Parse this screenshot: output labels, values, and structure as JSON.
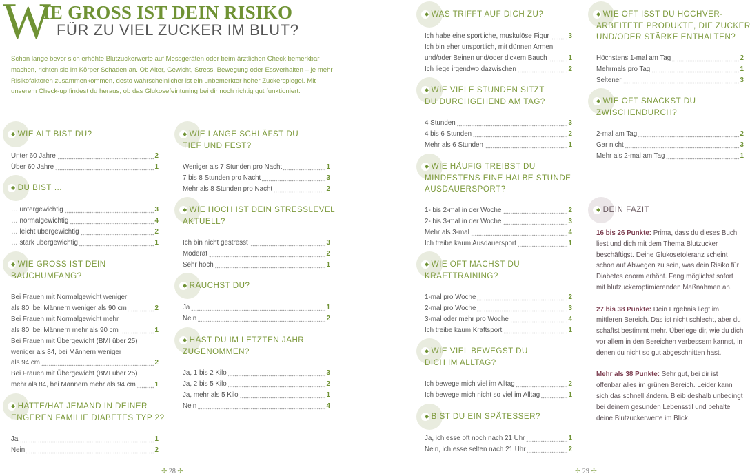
{
  "title": {
    "initial": "W",
    "line1": "IE GROSS IST DEIN RISIKO",
    "line2": "FÜR ZU VIEL ZUCKER IM BLUT?"
  },
  "intro": "Schon lange bevor sich erhöhte Blutzuckerwerte auf Messgeräten oder beim ärztlichen Check bemerkbar machen, richten sie im Körper Schaden an. Ob Alter, Gewicht, Stress, Bewegung oder Essverhalten – je mehr Risikofaktoren zusammenkommen, desto wahrscheinlicher ist ein unbemerkter hoher Zuckerspiegel. Mit unserem Check-up findest du heraus, ob das Glukosefeintuning bei dir noch richtig gut funktioniert.",
  "sections": [
    {
      "q": "WIE ALT BIST DU?",
      "options": [
        {
          "t": "Unter 60 Jahre",
          "n": "2"
        },
        {
          "t": "Über 60 Jahre",
          "n": "1"
        }
      ]
    },
    {
      "q": "DU BIST …",
      "options": [
        {
          "t": "… untergewichtig",
          "n": "3"
        },
        {
          "t": "… normalgewichtig",
          "n": "4"
        },
        {
          "t": "… leicht übergewichtig",
          "n": "2"
        },
        {
          "t": "… stark übergewichtig",
          "n": "1"
        }
      ]
    },
    {
      "q": "WIE GROSS IST DEIN\nBAUCHUMFANG?",
      "options": [
        {
          "t": "Bei Frauen mit Normalgewicht weniger\nals 80, bei Männern weniger als 90 cm",
          "n": "2"
        },
        {
          "t": "Bei Frauen mit Normalgewicht mehr\nals 80, bei Männern mehr als 90 cm",
          "n": "1"
        },
        {
          "t": "Bei Frauen mit Übergewicht (BMI über 25)\nweniger als 84, bei Männern weniger\nals 94 cm",
          "n": "2"
        },
        {
          "t": "Bei Frauen mit Übergewicht (BMI über 25)\nmehr als 84, bei Männern mehr als 94 cm",
          "n": "1"
        }
      ]
    },
    {
      "q": "HATTE/HAT JEMAND IN DEINER\nENGEREN FAMILIE DIABETES TYP 2?",
      "options": [
        {
          "t": "Ja",
          "n": "1"
        },
        {
          "t": "Nein",
          "n": "2"
        }
      ]
    },
    {
      "q": "WIE LANGE SCHLÄFST DU\nTIEF UND FEST?",
      "options": [
        {
          "t": "Weniger als 7 Stunden pro Nacht",
          "n": "1"
        },
        {
          "t": "7 bis 8 Stunden pro Nacht",
          "n": "3"
        },
        {
          "t": "Mehr als 8 Stunden pro Nacht",
          "n": "2"
        }
      ]
    },
    {
      "q": "WIE HOCH IST DEIN STRESSLEVEL\nAKTUELL?",
      "options": [
        {
          "t": "Ich bin nicht gestresst",
          "n": "3"
        },
        {
          "t": "Moderat",
          "n": "2"
        },
        {
          "t": "Sehr hoch",
          "n": "1"
        }
      ]
    },
    {
      "q": "RAUCHST DU?",
      "options": [
        {
          "t": "Ja",
          "n": "1"
        },
        {
          "t": "Nein",
          "n": "2"
        }
      ]
    },
    {
      "q": "HAST DU IM LETZTEN JAHR\nZUGENOMMEN?",
      "options": [
        {
          "t": "Ja, 1 bis 2 Kilo",
          "n": "3"
        },
        {
          "t": "Ja,  2 bis 5 Kilo",
          "n": "2"
        },
        {
          "t": "Ja,  mehr als 5 Kilo",
          "n": "1"
        },
        {
          "t": "Nein",
          "n": "4"
        }
      ]
    },
    {
      "q": "WAS TRIFFT AUF DICH ZU?",
      "options": [
        {
          "t": "Ich habe eine sportliche, muskulöse Figur",
          "n": "3"
        },
        {
          "t": "Ich bin eher unsportlich, mit dünnen Armen\nund/oder Beinen und/oder dickem Bauch",
          "n": "1"
        },
        {
          "t": "Ich liege irgendwo dazwischen",
          "n": "2"
        }
      ]
    },
    {
      "q": "WIE VIELE STUNDEN SITZT\nDU DURCHGEHEND AM TAG?",
      "options": [
        {
          "t": "4 Stunden",
          "n": "3"
        },
        {
          "t": "4 bis 6 Stunden",
          "n": "2"
        },
        {
          "t": "Mehr als 6 Stunden",
          "n": "1"
        }
      ]
    },
    {
      "q": "WIE HÄUFIG TREIBST DU\nMINDESTENS EINE HALBE STUNDE\nAUSDAUERSPORT?",
      "options": [
        {
          "t": "1- bis 2-mal in der Woche",
          "n": "2"
        },
        {
          "t": "2- bis 3-mal in der Woche",
          "n": "3"
        },
        {
          "t": "Mehr als 3-mal",
          "n": "4"
        },
        {
          "t": "Ich treibe kaum Ausdauersport",
          "n": "1"
        }
      ]
    },
    {
      "q": "WIE OFT MACHST DU\nKRAFTTRAINING?",
      "options": [
        {
          "t": "1-mal pro Woche",
          "n": "2"
        },
        {
          "t": "2-mal pro Woche",
          "n": "3"
        },
        {
          "t": "3-mal oder mehr pro Woche",
          "n": "4"
        },
        {
          "t": "Ich treibe kaum Kraftsport",
          "n": "1"
        }
      ]
    },
    {
      "q": "WIE VIEL BEWEGST DU\nDICH IM ALLTAG?",
      "options": [
        {
          "t": "Ich bewege mich viel im Alltag",
          "n": "2"
        },
        {
          "t": "Ich bewege mich nicht so viel im Alltag",
          "n": "1"
        }
      ]
    },
    {
      "q": "BIST DU EIN SPÄTESSER?",
      "options": [
        {
          "t": "Ja, ich esse oft noch nach 21 Uhr",
          "n": "1"
        },
        {
          "t": "Nein, ich esse selten nach 21 Uhr",
          "n": "2"
        }
      ]
    },
    {
      "q": "WIE OFT ISST DU HOCHVER-\nARBEITETE PRODUKTE, DIE ZUCKER\nUND/ODER STÄRKE ENTHALTEN?",
      "options": [
        {
          "t": "Höchstens 1-mal am Tag",
          "n": "2"
        },
        {
          "t": "Mehrmals pro Tag",
          "n": "1"
        },
        {
          "t": "Seltener",
          "n": "3"
        }
      ]
    },
    {
      "q": "WIE OFT SNACKST DU\nZWISCHENDURCH?",
      "options": [
        {
          "t": "2-mal am Tag",
          "n": "2"
        },
        {
          "t": "Gar nicht",
          "n": "3"
        },
        {
          "t": "Mehr als 2-mal am Tag",
          "n": "1"
        }
      ]
    }
  ],
  "fazit": {
    "q": "DEIN FAZIT",
    "results": [
      {
        "range": "16 bis 26 Punkte:",
        "text": " Prima, dass du dieses Buch liest und dich mit dem Thema Blutzucker beschäftigst. Deine Glukosetoleranz scheint schon auf Abwegen zu sein, was dein Risiko für Diabetes enorm erhöht. Fang möglichst sofort mit blutzuckeroptimierenden Maßnahmen an."
      },
      {
        "range": "27 bis 38 Punkte:",
        "text": " Dein Ergebnis liegt im mittleren Bereich. Das ist nicht schlecht, aber du schaffst bestimmt mehr. Überlege dir, wie du dich vor allem in den Bereichen verbessern kannst, in denen du nicht so gut abgeschnitten hast."
      },
      {
        "range": "Mehr als 38 Punkte:",
        "text": " Sehr gut, bei dir ist offenbar alles im grünen Bereich. Leider kann sich das schnell ändern. Bleib deshalb unbedingt bei deinem gesunden Lebensstil und behalte deine Blutzucker­werte im Blick."
      }
    ]
  },
  "pages": {
    "left": "28",
    "right": "29",
    "ornament": "✢"
  },
  "colors": {
    "accent_green": "#6f9234",
    "heading_green": "#7d9a3c",
    "fazit_label": "#7c3d4f"
  }
}
